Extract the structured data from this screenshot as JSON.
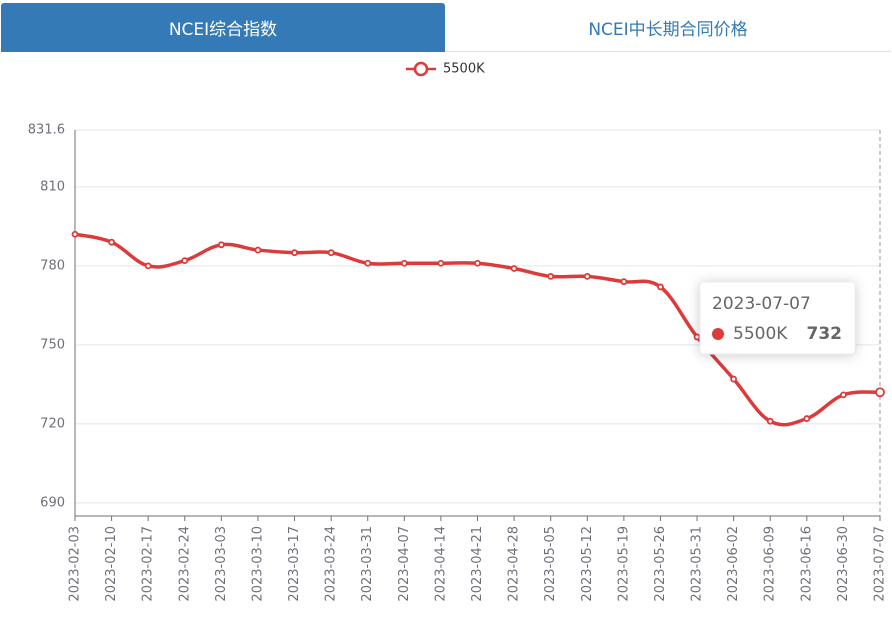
{
  "tabs": [
    "NCEI综合指数",
    "NCEI中长期合同价格"
  ],
  "chart_data": {
    "type": "line",
    "x": [
      "2023-02-03",
      "2023-02-10",
      "2023-02-17",
      "2023-02-24",
      "2023-03-03",
      "2023-03-10",
      "2023-03-17",
      "2023-03-24",
      "2023-03-31",
      "2023-04-07",
      "2023-04-14",
      "2023-04-21",
      "2023-04-28",
      "2023-05-05",
      "2023-05-12",
      "2023-05-19",
      "2023-05-26",
      "2023-05-31",
      "2023-06-02",
      "2023-06-09",
      "2023-06-16",
      "2023-06-30",
      "2023-07-07"
    ],
    "series": [
      {
        "name": "5500K",
        "color": "#dd3b3b",
        "values": [
          792,
          789,
          780,
          782,
          788,
          786,
          785,
          785,
          781,
          781,
          781,
          781,
          779,
          776,
          776,
          774,
          772,
          753,
          737,
          721,
          722,
          731,
          732
        ]
      }
    ],
    "ylim": [
      685,
      831.6
    ],
    "yticks": [
      690,
      720,
      750,
      780,
      810,
      831.6
    ],
    "grid": true,
    "legend": "top"
  }
}
